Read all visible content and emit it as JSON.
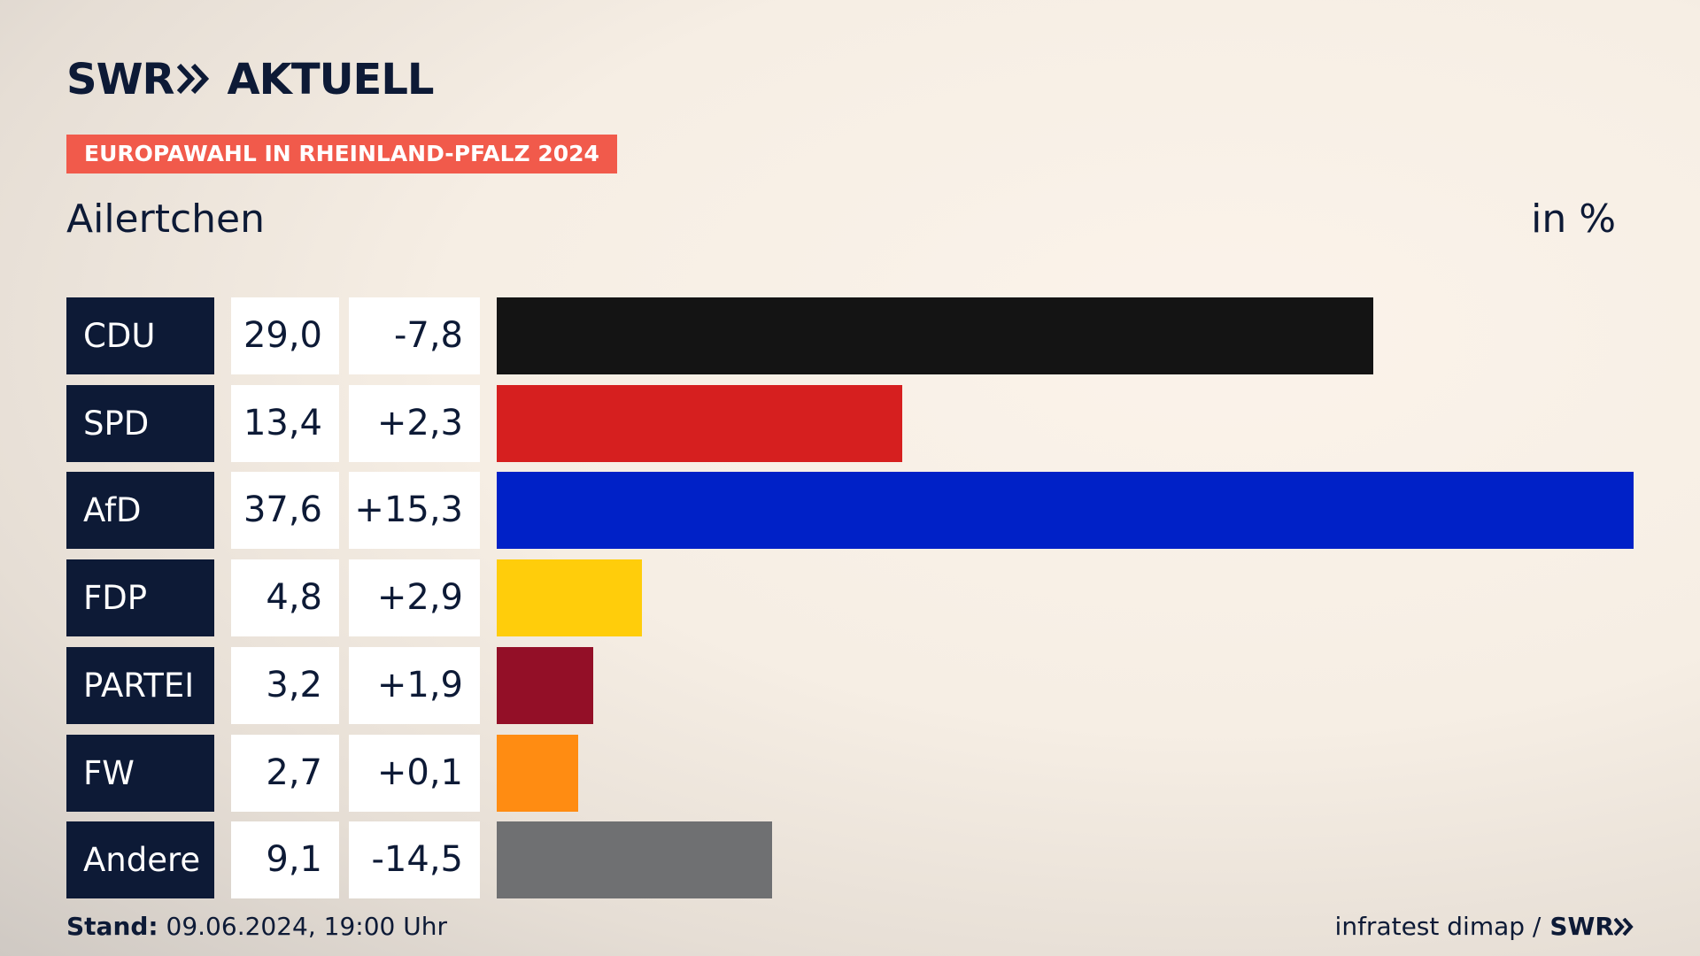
{
  "header": {
    "logo_left": "SWR",
    "logo_right": "AKTUELL",
    "badge": "EUROPAWAHL IN RHEINLAND-PFALZ 2024",
    "place": "Ailertchen",
    "unit": "in %"
  },
  "footer": {
    "stand_label": "Stand:",
    "stand_value": "09.06.2024, 19:00 Uhr",
    "source": "infratest dimap /",
    "source_logo": "SWR"
  },
  "colors": {
    "navy": "#0d1a36",
    "badge": "#f15a4b"
  },
  "chart_data": {
    "type": "bar",
    "orientation": "horizontal",
    "categories": [
      "CDU",
      "SPD",
      "AfD",
      "FDP",
      "PARTEI",
      "FW",
      "Andere"
    ],
    "value_labels": [
      "29,0",
      "13,4",
      "37,6",
      "4,8",
      "3,2",
      "2,7",
      "9,1"
    ],
    "diff_labels": [
      "-7,8",
      "+2,3",
      "+15,3",
      "+2,9",
      "+1,9",
      "+0,1",
      "-14,5"
    ],
    "values": [
      29.0,
      13.4,
      37.6,
      4.8,
      3.2,
      2.7,
      9.1
    ],
    "diffs": [
      -7.8,
      2.3,
      15.3,
      2.9,
      1.9,
      0.1,
      -14.5
    ],
    "bar_colors": [
      "#141414",
      "#d61f1f",
      "#0021c7",
      "#ffcd0b",
      "#930f27",
      "#ff8c12",
      "#6f7072"
    ],
    "xlim": [
      0,
      37.6
    ],
    "grid": false,
    "legend": "none"
  }
}
